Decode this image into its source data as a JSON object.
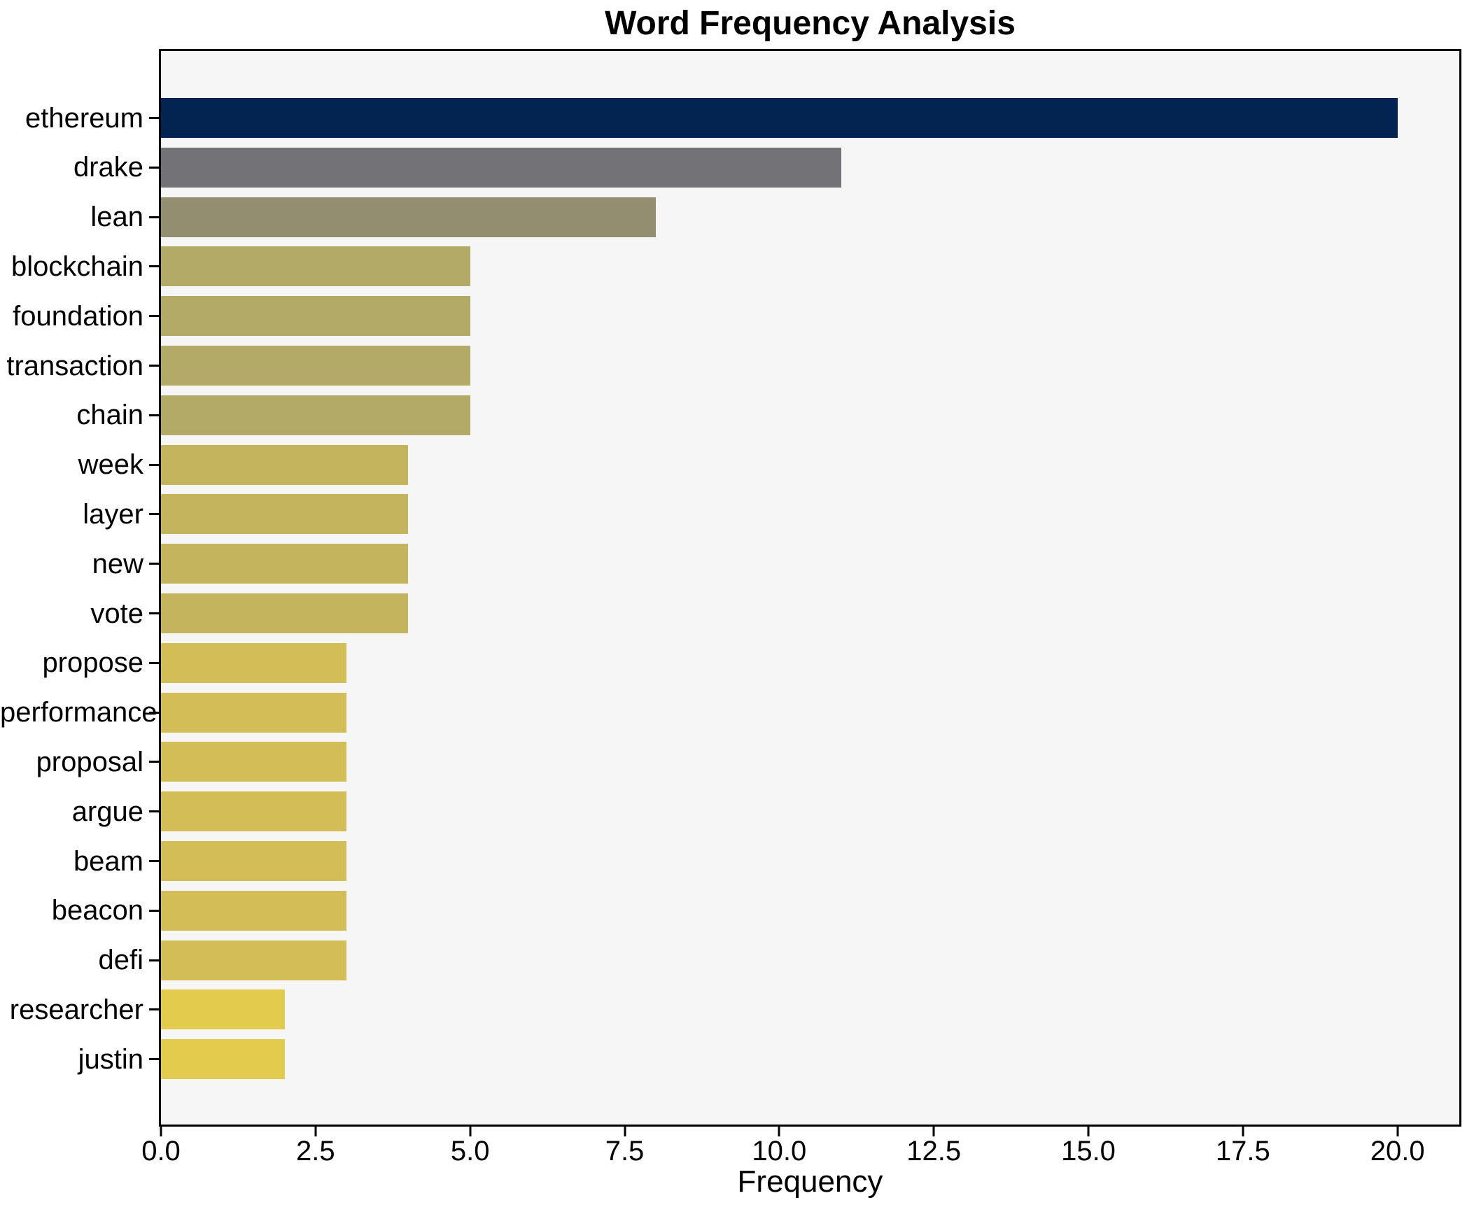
{
  "chart_data": {
    "type": "bar",
    "orientation": "horizontal",
    "title": "Word Frequency Analysis",
    "xlabel": "Frequency",
    "ylabel": "",
    "categories": [
      "ethereum",
      "drake",
      "lean",
      "blockchain",
      "foundation",
      "transaction",
      "chain",
      "week",
      "layer",
      "new",
      "vote",
      "propose",
      "performance",
      "proposal",
      "argue",
      "beam",
      "beacon",
      "defi",
      "researcher",
      "justin"
    ],
    "values": [
      20,
      11,
      8,
      5,
      5,
      5,
      5,
      4,
      4,
      4,
      4,
      3,
      3,
      3,
      3,
      3,
      3,
      3,
      2,
      2
    ],
    "bar_colors": [
      "#032350",
      "#737377",
      "#948e71",
      "#b4aa68",
      "#b4aa68",
      "#b4aa68",
      "#b4aa68",
      "#c5b45e",
      "#c5b45e",
      "#c5b45e",
      "#c5b45e",
      "#d3bd57",
      "#d3bd57",
      "#d3bd57",
      "#d3bd57",
      "#d3bd57",
      "#d3bd57",
      "#d3bd57",
      "#e3cb4d",
      "#e3cb4d"
    ],
    "xlim": [
      0,
      21
    ],
    "xtick_values": [
      0,
      2.5,
      5,
      7.5,
      10,
      12.5,
      15,
      17.5,
      20
    ],
    "xtick_labels": [
      "0.0",
      "2.5",
      "5.0",
      "7.5",
      "10.0",
      "12.5",
      "15.0",
      "17.5",
      "20.0"
    ],
    "grid": false,
    "legend_position": "none",
    "plot_background": "#f6f6f7",
    "figure_background": "#ffffff",
    "text_color": "#000000"
  }
}
